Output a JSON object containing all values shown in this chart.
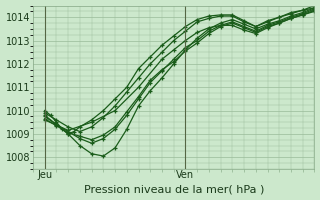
{
  "xlabel": "Pression niveau de la mer( hPa )",
  "bg_color": "#cce8cc",
  "plot_bg": "#cce8cc",
  "grid_color": "#99bb99",
  "line_color": "#1a5c1a",
  "vline_color": "#556644",
  "ylim": [
    1007.5,
    1014.5
  ],
  "yticks": [
    1008,
    1009,
    1010,
    1011,
    1012,
    1013,
    1014
  ],
  "xlim": [
    0,
    48
  ],
  "jeu_x": 2,
  "ven_x": 26,
  "series": [
    {
      "x": [
        2,
        3,
        4,
        5,
        6,
        7,
        8,
        10,
        12,
        14,
        16,
        18,
        20,
        22,
        24,
        26,
        28,
        30,
        32,
        34,
        36,
        38,
        40,
        42,
        44,
        46,
        48
      ],
      "y": [
        1010.0,
        1009.8,
        1009.5,
        1009.2,
        1009.0,
        1009.1,
        1009.3,
        1009.6,
        1010.0,
        1010.5,
        1011.0,
        1011.8,
        1012.3,
        1012.8,
        1013.2,
        1013.6,
        1013.9,
        1014.05,
        1014.1,
        1014.1,
        1013.85,
        1013.6,
        1013.8,
        1014.0,
        1014.15,
        1014.3,
        1014.4
      ]
    },
    {
      "x": [
        2,
        4,
        6,
        8,
        10,
        12,
        14,
        16,
        18,
        20,
        22,
        24,
        26,
        28,
        30,
        32,
        34,
        36,
        38,
        40,
        42,
        44,
        46,
        48
      ],
      "y": [
        1009.9,
        1009.6,
        1009.3,
        1009.1,
        1009.3,
        1009.7,
        1010.2,
        1010.8,
        1011.4,
        1012.0,
        1012.5,
        1013.0,
        1013.4,
        1013.8,
        1013.95,
        1014.05,
        1014.05,
        1013.8,
        1013.6,
        1013.85,
        1014.0,
        1014.2,
        1014.3,
        1014.5
      ]
    },
    {
      "x": [
        2,
        4,
        6,
        8,
        10,
        12,
        14,
        16,
        18,
        20,
        22,
        24,
        26,
        28,
        30,
        32,
        34,
        36,
        38,
        40,
        42,
        44,
        46,
        48
      ],
      "y": [
        1009.8,
        1009.4,
        1009.0,
        1008.5,
        1008.15,
        1008.05,
        1008.4,
        1009.2,
        1010.2,
        1010.85,
        1011.4,
        1012.0,
        1012.6,
        1013.1,
        1013.5,
        1013.75,
        1013.9,
        1013.7,
        1013.5,
        1013.7,
        1013.85,
        1014.05,
        1014.2,
        1014.4
      ]
    },
    {
      "x": [
        2,
        4,
        6,
        8,
        10,
        12,
        14,
        16,
        18,
        20,
        22,
        24,
        26,
        28,
        30,
        32,
        34,
        36,
        38,
        40,
        42,
        44,
        46,
        48
      ],
      "y": [
        1009.75,
        1009.4,
        1009.1,
        1008.8,
        1008.6,
        1008.8,
        1009.2,
        1009.8,
        1010.5,
        1011.2,
        1011.7,
        1012.2,
        1012.7,
        1013.0,
        1013.4,
        1013.65,
        1013.8,
        1013.6,
        1013.4,
        1013.65,
        1013.8,
        1014.0,
        1014.15,
        1014.35
      ]
    },
    {
      "x": [
        2,
        4,
        6,
        8,
        10,
        12,
        14,
        16,
        18,
        20,
        22,
        24,
        26,
        28,
        30,
        32,
        34,
        36,
        38,
        40,
        42,
        44,
        46,
        48
      ],
      "y": [
        1009.65,
        1009.35,
        1009.05,
        1008.9,
        1008.75,
        1008.95,
        1009.3,
        1009.95,
        1010.6,
        1011.3,
        1011.75,
        1012.1,
        1012.55,
        1012.9,
        1013.3,
        1013.6,
        1013.75,
        1013.55,
        1013.35,
        1013.6,
        1013.75,
        1013.95,
        1014.1,
        1014.3
      ]
    },
    {
      "x": [
        2,
        6,
        10,
        14,
        18,
        22,
        24,
        26,
        28,
        30,
        32,
        34,
        36,
        38,
        40,
        42,
        44,
        46,
        48
      ],
      "y": [
        1009.6,
        1009.15,
        1009.5,
        1010.0,
        1011.0,
        1012.2,
        1012.6,
        1013.0,
        1013.35,
        1013.55,
        1013.65,
        1013.65,
        1013.45,
        1013.3,
        1013.55,
        1013.75,
        1013.95,
        1014.1,
        1014.25
      ]
    }
  ]
}
